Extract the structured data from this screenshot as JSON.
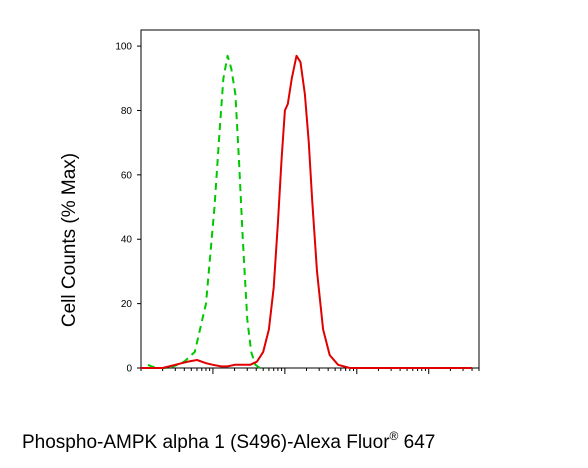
{
  "chart_data": {
    "type": "line",
    "ylabel": "Cell Counts (% Max)",
    "xlabel": {
      "main": "Phospho-AMPK alpha 1 (S496)-Alexa Fluor",
      "superscript": "®",
      "suffix": " 647"
    },
    "x_scale": "log",
    "xlim": [
      100,
      5000000
    ],
    "ylim": [
      0,
      105
    ],
    "y_ticks": [
      0,
      20,
      40,
      60,
      80,
      100
    ],
    "y_tick_labels": [
      "0",
      "20",
      "40",
      "60",
      "80",
      "100"
    ],
    "x_major_ticks": [
      1000,
      10000,
      100000,
      1000000
    ],
    "grid": false,
    "legend": "none",
    "series": [
      {
        "color": "#00c800",
        "style": "dashed",
        "x": [
          125,
          140,
          170,
          230,
          280,
          400,
          560,
          800,
          1050,
          1250,
          1400,
          1600,
          1800,
          2050,
          2300,
          2600,
          3000,
          3400,
          3900,
          4500,
          5300
        ],
        "y": [
          1,
          0.5,
          0,
          0,
          0.5,
          2,
          5,
          20,
          50,
          75,
          90,
          97,
          93,
          85,
          65,
          40,
          15,
          5,
          1,
          0,
          0
        ]
      },
      {
        "color": "#e00000",
        "style": "solid",
        "x": [
          100,
          200,
          300,
          450,
          600,
          800,
          1000,
          1300,
          1600,
          2000,
          2600,
          3300,
          4100,
          5000,
          6000,
          7000,
          8000,
          9000,
          10000,
          11000,
          12500,
          14500,
          16500,
          19000,
          21500,
          24000,
          28000,
          34000,
          42000,
          55000,
          80000,
          130000,
          300000,
          1000000,
          4000000
        ],
        "y": [
          0,
          0,
          1,
          2,
          2.5,
          1.5,
          1,
          0.5,
          0.5,
          1,
          1,
          1,
          2,
          5,
          12,
          25,
          45,
          65,
          80,
          82,
          90,
          97,
          95,
          85,
          70,
          52,
          30,
          12,
          4,
          1,
          0,
          0,
          0,
          0,
          0
        ]
      }
    ]
  }
}
